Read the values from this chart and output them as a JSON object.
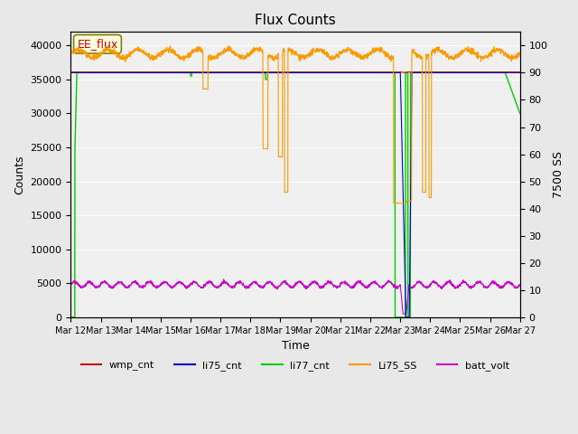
{
  "title": "Flux Counts",
  "ylabel_left": "Counts",
  "ylabel_right": "7500 SS",
  "xlabel": "Time",
  "ylim_left": [
    0,
    42000
  ],
  "ylim_right": [
    0,
    105
  ],
  "annotation_text": "EE_flux",
  "legend_entries": [
    "wmp_cnt",
    "li75_cnt",
    "li77_cnt",
    "Li75_SS",
    "batt_volt"
  ],
  "legend_colors": [
    "#cc0000",
    "#0000cc",
    "#00cc00",
    "#ff9900",
    "#cc00cc"
  ],
  "bg_color": "#e8e8e8",
  "plot_bg_color": "#f0f0f0",
  "x_labels": [
    "Mar 12",
    "Mar 13",
    "Mar 14",
    "Mar 15",
    "Mar 16",
    "Mar 17",
    "Mar 18",
    "Mar 19",
    "Mar 20",
    "Mar 21",
    "Mar 22",
    "Mar 23",
    "Mar 24",
    "Mar 25",
    "Mar 26",
    "Mar 27"
  ],
  "seed": 42
}
